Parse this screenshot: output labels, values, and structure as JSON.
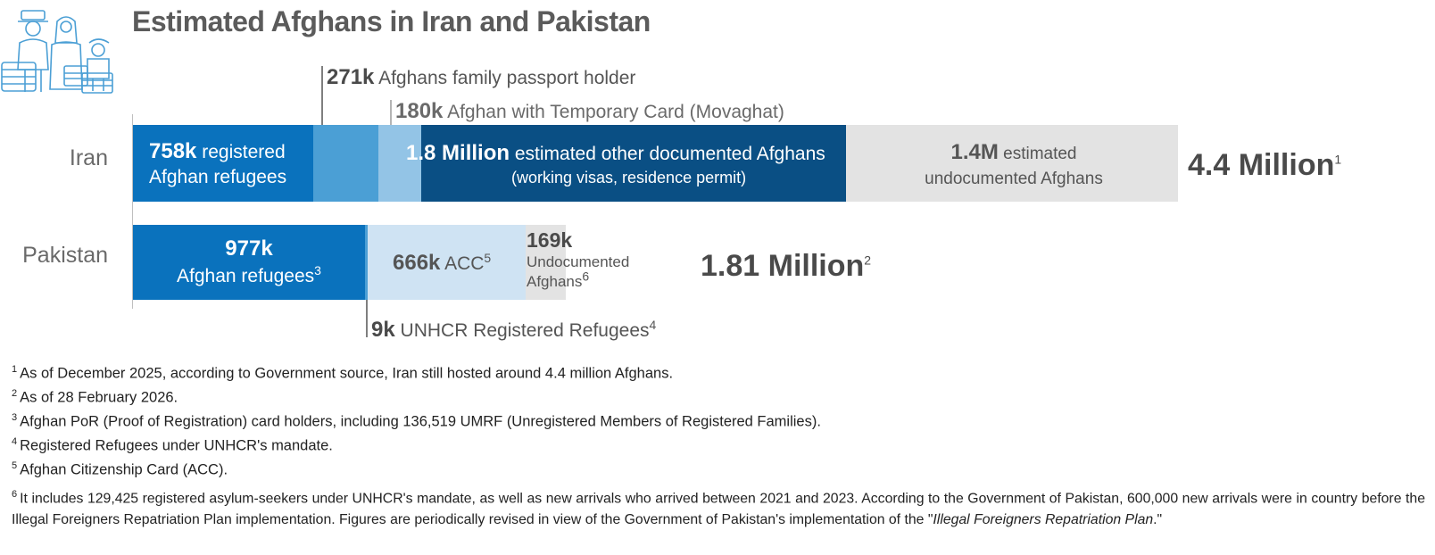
{
  "title": "Estimated Afghans in Iran and Pakistan",
  "colors": {
    "dark_blue": "#0a4f84",
    "blue": "#0a72bd",
    "mid_blue": "#4b9fd5",
    "light_blue": "#93c4e6",
    "pale_blue": "#cfe3f3",
    "gray": "#e3e3e3"
  },
  "icons": [
    "family-with-luggage-icon"
  ],
  "chart_data": {
    "type": "bar",
    "orientation": "horizontal",
    "stacked": true,
    "categories": [
      "Iran",
      "Pakistan"
    ],
    "iran": {
      "label": "Iran",
      "total_label": "4.4 Million",
      "total_sup": "1",
      "segments": [
        {
          "value": 758000,
          "bold": "758k",
          "text": "registered",
          "line2": "Afghan refugees",
          "color": "#0a72bd"
        },
        {
          "value": 271000,
          "bold": "271k",
          "text": "Afghans family passport holder",
          "color": "#4b9fd5"
        },
        {
          "value": 180000,
          "bold": "180k",
          "text": "Afghan with Temporary Card (Movaghat)",
          "color": "#93c4e6"
        },
        {
          "value": 1800000,
          "bold": "1.8 Million",
          "text": "estimated other documented Afghans",
          "line2": "(working visas, residence permit)",
          "color": "#0a4f84"
        },
        {
          "value": 1400000,
          "bold": "1.4M",
          "text": "estimated",
          "line2": "undocumented Afghans",
          "color": "#e3e3e3"
        }
      ]
    },
    "pakistan": {
      "label": "Pakistan",
      "total_label": "1.81 Million",
      "total_sup": "2",
      "segments": [
        {
          "value": 977000,
          "bold": "977k",
          "line2": "Afghan refugees",
          "sup": "3",
          "color": "#0a72bd"
        },
        {
          "value": 9000,
          "bold": "9k",
          "text": "UNHCR Registered Refugees",
          "sup": "4",
          "color": "#4b9fd5"
        },
        {
          "value": 666000,
          "bold": "666k",
          "text": "ACC",
          "sup": "5",
          "color": "#cfe3f3"
        },
        {
          "value": 169000,
          "bold": "169k",
          "text": "Undocumented",
          "line2": "Afghans",
          "sup": "6",
          "color": "#e3e3e3"
        }
      ]
    }
  },
  "footnotes": [
    {
      "num": "1",
      "text": "As of December 2025, according to Government source, Iran still hosted around 4.4 million Afghans."
    },
    {
      "num": "2",
      "text": "As of 28 February 2026."
    },
    {
      "num": "3",
      "text": "Afghan PoR (Proof of Registration) card holders, including 136,519 UMRF (Unregistered Members of Registered Families)."
    },
    {
      "num": "4",
      "text": "Registered Refugees under UNHCR's mandate."
    },
    {
      "num": "5",
      "text": "Afghan Citizenship Card (ACC)."
    },
    {
      "num": "6",
      "text": "It includes 129,425 registered asylum-seekers under UNHCR's mandate, as well as new arrivals who arrived between 2021 and 2023. According to the Government of Pakistan, 600,000 new arrivals were in country before the Illegal Foreigners Repatriation Plan implementation. Figures are periodically revised in view of the Government of Pakistan's implementation of the \"",
      "italic": "Illegal Foreigners Repatriation Plan",
      "after": ".\""
    }
  ]
}
